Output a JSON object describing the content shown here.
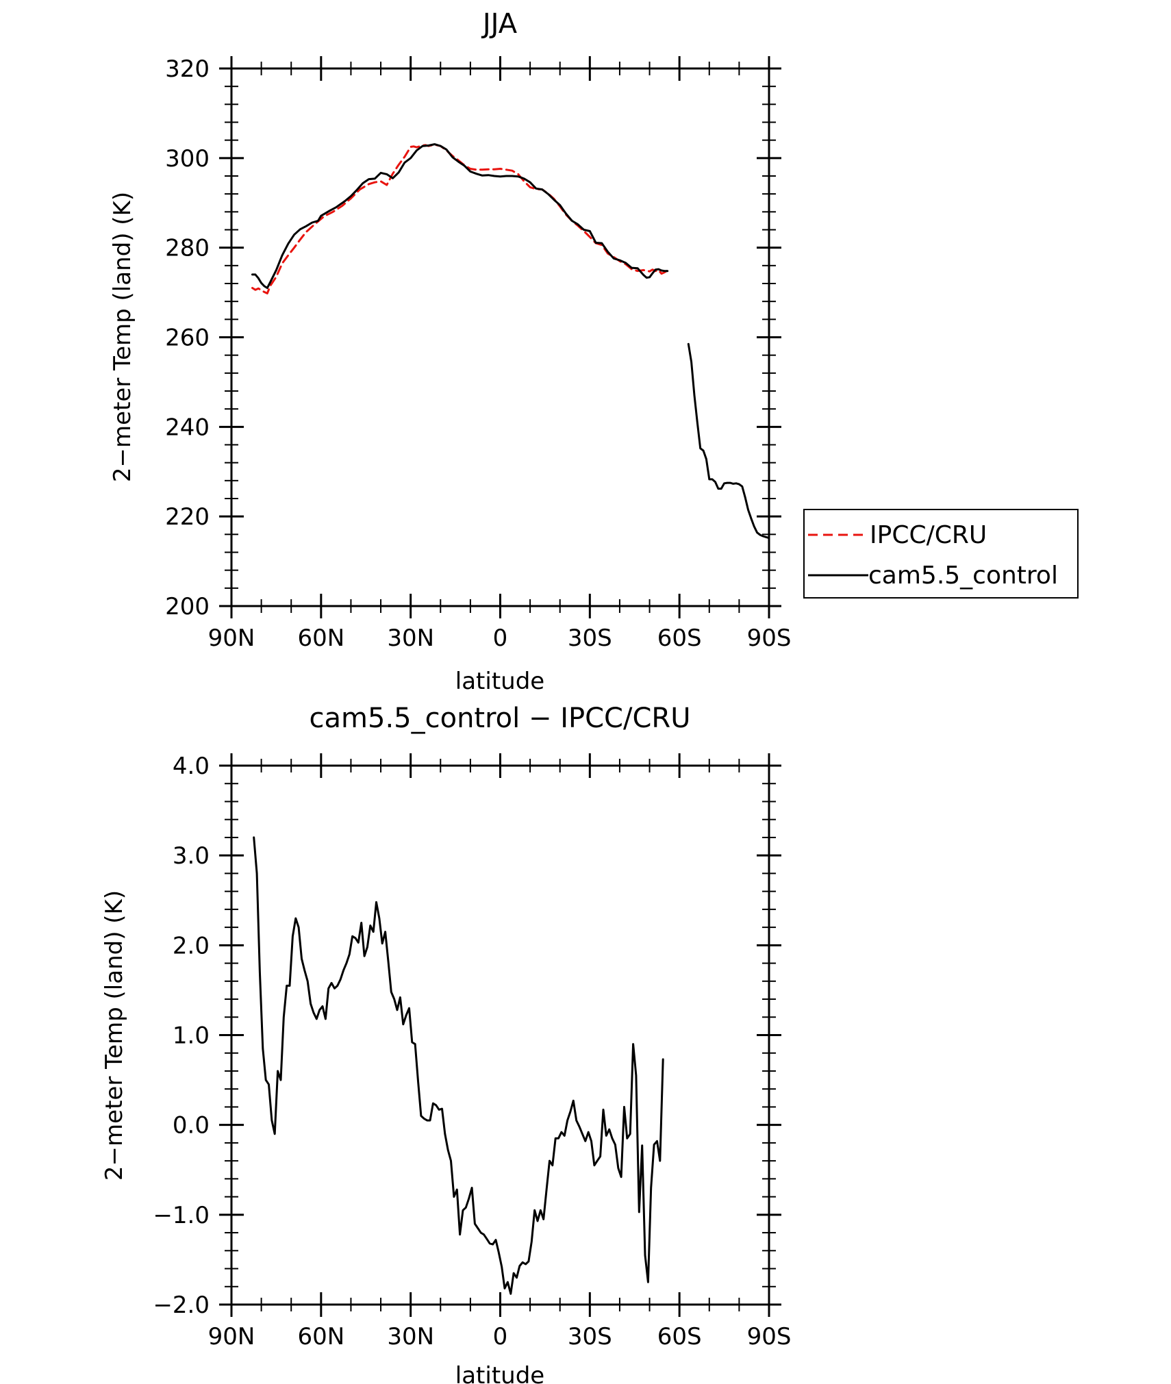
{
  "chart_data": [
    {
      "type": "line",
      "title": "JJA",
      "xlabel": "latitude",
      "ylabel": "2−meter Temp (land) (K)",
      "xlim": [
        90,
        -90
      ],
      "ylim": [
        200,
        320
      ],
      "x_ticks": [
        {
          "value": 90,
          "label": "90N"
        },
        {
          "value": 60,
          "label": "60N"
        },
        {
          "value": 30,
          "label": "30N"
        },
        {
          "value": 0,
          "label": "0"
        },
        {
          "value": -30,
          "label": "30S"
        },
        {
          "value": -60,
          "label": "60S"
        },
        {
          "value": -90,
          "label": "90S"
        }
      ],
      "y_ticks": [
        {
          "value": 200,
          "label": "200"
        },
        {
          "value": 220,
          "label": "220"
        },
        {
          "value": 240,
          "label": "240"
        },
        {
          "value": 260,
          "label": "260"
        },
        {
          "value": 280,
          "label": "280"
        },
        {
          "value": 300,
          "label": "300"
        },
        {
          "value": 320,
          "label": "320"
        }
      ],
      "legend": {
        "placement": "right"
      },
      "series": [
        {
          "name": "IPCC/CRU",
          "color": "#e8140f",
          "dash": "dashed",
          "x": [
            83,
            82,
            81,
            80,
            79,
            78,
            77,
            75,
            73,
            71,
            69,
            67,
            65,
            62,
            59,
            56,
            53,
            50,
            47,
            44,
            42,
            40,
            38,
            36,
            34,
            32,
            30,
            29,
            28,
            27,
            26,
            25,
            24,
            22,
            20,
            18,
            16,
            14,
            12,
            10,
            8,
            6,
            4,
            2,
            0,
            -2,
            -4,
            -6,
            -8,
            -10,
            -12,
            -14,
            -16,
            -18,
            -20,
            -22,
            -24,
            -26,
            -28,
            -30,
            -32,
            -34,
            -36,
            -38,
            -40,
            -42,
            -44,
            -46,
            -48,
            -50,
            -51,
            -52,
            -53,
            -54,
            -55,
            -56
          ],
          "y": [
            271.0,
            270.6,
            270.9,
            270.5,
            270.1,
            269.8,
            271.5,
            273.5,
            276.5,
            278.3,
            280.0,
            281.8,
            283.5,
            285.3,
            287.0,
            288.0,
            289.3,
            291.0,
            293.0,
            294.2,
            294.6,
            294.8,
            294.0,
            296.5,
            298.5,
            300.3,
            302.5,
            302.6,
            302.4,
            302.6,
            302.8,
            302.9,
            302.7,
            303.0,
            302.7,
            301.7,
            300.5,
            299.5,
            298.4,
            297.6,
            297.4,
            297.4,
            297.5,
            297.5,
            297.6,
            297.4,
            297.2,
            296.4,
            294.8,
            293.5,
            293.1,
            293.0,
            292.1,
            290.9,
            289.2,
            287.4,
            286.0,
            284.9,
            283.7,
            282.4,
            281.0,
            280.6,
            278.7,
            277.9,
            277.0,
            276.3,
            275.2,
            274.8,
            275.0,
            274.7,
            275.1,
            274.8,
            275.0,
            274.2,
            274.5,
            274.9
          ]
        },
        {
          "name": "cam5.5_control",
          "color": "#000000",
          "dash": "solid",
          "x": [
            83,
            82,
            81,
            80,
            79,
            78,
            77,
            75,
            73,
            71,
            69,
            67,
            65,
            63,
            61,
            60,
            57,
            55,
            52,
            50,
            48,
            46,
            44,
            42,
            40,
            38,
            36,
            34,
            32,
            30,
            28,
            26,
            24,
            22,
            20,
            18,
            16,
            14,
            12,
            10,
            8,
            6,
            4,
            2,
            0,
            -2,
            -4,
            -6,
            -8,
            -10,
            -12,
            -14,
            -16,
            -18,
            -20,
            -22,
            -24,
            -26,
            -28,
            -30,
            -32,
            -34,
            -36,
            -38,
            -40,
            -42,
            -44,
            -46,
            -48,
            -49,
            -50,
            -51,
            -52,
            -53,
            -54,
            -55,
            -56,
            null,
            -63,
            -64,
            -65,
            -66,
            -67,
            -68,
            -69,
            -70,
            -71,
            -72,
            -73,
            -74,
            -75,
            -76,
            -77,
            -78,
            -79,
            -80,
            -81,
            -82,
            -83,
            -84,
            -85,
            -86,
            -87,
            -88,
            -89,
            -90
          ],
          "y": [
            274.0,
            274.0,
            273.2,
            272.1,
            271.4,
            271.0,
            272.3,
            275.0,
            278.3,
            280.9,
            282.9,
            284.1,
            284.8,
            285.6,
            286.0,
            287.1,
            288.3,
            289.0,
            290.4,
            291.5,
            292.9,
            294.4,
            295.3,
            295.4,
            296.7,
            296.4,
            295.5,
            296.8,
            299.0,
            300.0,
            301.7,
            302.7,
            302.8,
            303.1,
            302.7,
            301.9,
            300.2,
            299.2,
            298.3,
            297.0,
            296.5,
            296.1,
            296.2,
            296.0,
            295.9,
            296.0,
            296.0,
            295.9,
            295.4,
            294.6,
            293.2,
            293.0,
            292.0,
            290.7,
            289.5,
            287.6,
            286.0,
            285.2,
            284.0,
            283.7,
            281.1,
            281.0,
            279.1,
            277.6,
            277.2,
            276.6,
            275.5,
            275.4,
            273.9,
            273.3,
            273.4,
            274.3,
            275.1,
            275.2,
            274.9,
            274.8,
            274.8,
            null,
            258.5,
            254.5,
            247.0,
            241.0,
            235.2,
            234.7,
            232.8,
            228.3,
            228.3,
            227.7,
            226.2,
            226.2,
            227.4,
            227.5,
            227.5,
            227.3,
            227.4,
            227.2,
            226.7,
            224.3,
            221.5,
            219.6,
            217.8,
            216.4,
            215.9,
            215.6,
            215.4,
            215.2
          ]
        }
      ]
    },
    {
      "type": "line",
      "title": "cam5.5_control − IPCC/CRU",
      "xlabel": "latitude",
      "ylabel": "2−meter Temp (land) (K)",
      "xlim": [
        90,
        -90
      ],
      "ylim": [
        -2,
        4
      ],
      "x_ticks": [
        {
          "value": 90,
          "label": "90N"
        },
        {
          "value": 60,
          "label": "60N"
        },
        {
          "value": 30,
          "label": "30N"
        },
        {
          "value": 0,
          "label": "0"
        },
        {
          "value": -30,
          "label": "30S"
        },
        {
          "value": -60,
          "label": "60S"
        },
        {
          "value": -90,
          "label": "90S"
        }
      ],
      "y_ticks": [
        {
          "value": -2,
          "label": "−2.0"
        },
        {
          "value": -1,
          "label": "−1.0"
        },
        {
          "value": 0,
          "label": "0.0"
        },
        {
          "value": 1,
          "label": "1.0"
        },
        {
          "value": 2,
          "label": "2.0"
        },
        {
          "value": 3,
          "label": "3.0"
        },
        {
          "value": 4,
          "label": "4.0"
        }
      ],
      "series": [
        {
          "color": "#000000",
          "dash": "solid",
          "x": [
            82.5,
            81.5,
            80.5,
            79.5,
            78.5,
            77.5,
            76.5,
            75.5,
            74.5,
            73.5,
            72.5,
            71.5,
            70.5,
            69.5,
            68.5,
            67.5,
            66.5,
            65.5,
            64.5,
            63.5,
            62.5,
            61.5,
            60.5,
            59.5,
            58.5,
            57.5,
            56.5,
            55.5,
            54.5,
            53.5,
            52.5,
            51.5,
            50.5,
            49.5,
            48.5,
            47.5,
            46.5,
            45.5,
            44.5,
            43.5,
            42.5,
            41.5,
            40.5,
            39.5,
            38.5,
            37.5,
            36.5,
            35.5,
            34.5,
            33.5,
            32.5,
            31.5,
            30.5,
            29.5,
            28.5,
            27.5,
            26.5,
            25.5,
            24.5,
            23.5,
            22.5,
            21.5,
            20.5,
            19.5,
            18.5,
            17.5,
            16.5,
            15.5,
            14.5,
            13.5,
            12.5,
            11.5,
            10.5,
            9.5,
            8.5,
            7.5,
            6.5,
            5.5,
            4.5,
            3.5,
            2.5,
            1.5,
            0.5,
            -0.5,
            -1.5,
            -2.5,
            -3.5,
            -4.5,
            -5.5,
            -6.5,
            -7.5,
            -8.5,
            -9.5,
            -10.5,
            -11.5,
            -12.5,
            -13.5,
            -14.5,
            -15.5,
            -16.5,
            -17.5,
            -18.5,
            -19.5,
            -20.5,
            -21.5,
            -22.5,
            -23.5,
            -24.5,
            -25.5,
            -26.5,
            -27.5,
            -28.5,
            -29.5,
            -30.5,
            -31.5,
            -32.5,
            -33.5,
            -34.5,
            -35.5,
            -36.5,
            -37.5,
            -38.5,
            -39.5,
            -40.5,
            -41.5,
            -42.5,
            -43.5,
            -44.5,
            -45.5,
            -46.5,
            -47.5,
            -48.5,
            -49.5,
            -50.5,
            -51.5,
            -52.5,
            -53.5,
            -54.5
          ],
          "y": [
            3.2,
            2.8,
            1.7,
            0.85,
            0.5,
            0.45,
            0.05,
            -0.1,
            0.6,
            0.5,
            1.2,
            1.55,
            1.55,
            2.1,
            2.3,
            2.2,
            1.85,
            1.72,
            1.6,
            1.35,
            1.25,
            1.18,
            1.28,
            1.32,
            1.18,
            1.52,
            1.58,
            1.52,
            1.55,
            1.62,
            1.72,
            1.8,
            1.9,
            2.1,
            2.08,
            2.03,
            2.25,
            1.88,
            1.98,
            2.22,
            2.15,
            2.48,
            2.3,
            2.02,
            2.15,
            1.82,
            1.48,
            1.4,
            1.28,
            1.42,
            1.12,
            1.22,
            1.3,
            0.92,
            0.9,
            0.48,
            0.1,
            0.07,
            0.05,
            0.05,
            0.24,
            0.22,
            0.17,
            0.18,
            -0.1,
            -0.28,
            -0.4,
            -0.8,
            -0.72,
            -1.22,
            -0.95,
            -0.92,
            -0.82,
            -0.7,
            -1.1,
            -1.15,
            -1.2,
            -1.22,
            -1.27,
            -1.32,
            -1.33,
            -1.28,
            -1.42,
            -1.58,
            -1.82,
            -1.75,
            -1.88,
            -1.65,
            -1.7,
            -1.57,
            -1.53,
            -1.55,
            -1.52,
            -1.3,
            -0.95,
            -1.07,
            -0.95,
            -1.05,
            -0.72,
            -0.4,
            -0.45,
            -0.15,
            -0.15,
            -0.08,
            -0.12,
            0.05,
            0.15,
            0.27,
            0.05,
            -0.02,
            -0.1,
            -0.18,
            -0.08,
            -0.18,
            -0.45,
            -0.4,
            -0.35,
            0.17,
            -0.12,
            -0.05,
            -0.15,
            -0.22,
            -0.48,
            -0.58,
            0.2,
            -0.15,
            -0.1,
            0.9,
            0.55,
            -0.97,
            -0.23,
            -1.45,
            -1.75,
            -0.7,
            -0.22,
            -0.18,
            -0.4,
            0.73
          ]
        }
      ]
    }
  ],
  "legend_entries": [
    "IPCC/CRU",
    "cam5.5_control"
  ]
}
